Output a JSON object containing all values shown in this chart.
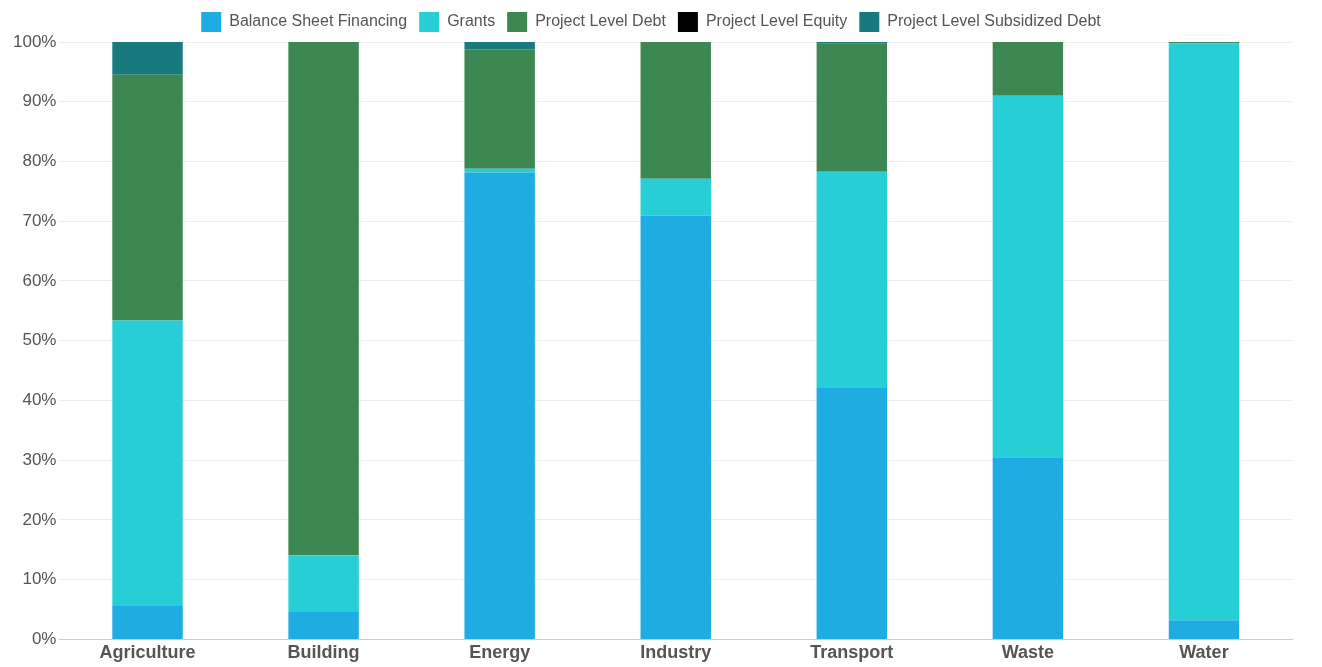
{
  "chart_data": {
    "type": "bar",
    "stacked": true,
    "categories": [
      "Agriculture",
      "Building",
      "Energy",
      "Industry",
      "Transport",
      "Waste",
      "Water"
    ],
    "series": [
      {
        "name": "Balance Sheet Financing",
        "color": "#1eace2",
        "values": [
          5.6,
          4.6,
          78.1,
          70.9,
          42.2,
          30.5,
          3.2
        ]
      },
      {
        "name": "Grants",
        "color": "#28ced6",
        "values": [
          47.8,
          9.5,
          0.7,
          6.2,
          36.1,
          60.5,
          96.6
        ]
      },
      {
        "name": "Project Level Debt",
        "color": "#3d8753",
        "values": [
          41.1,
          85.9,
          20.0,
          22.9,
          21.4,
          9.0,
          0.2
        ]
      },
      {
        "name": "Project Level Equity",
        "color": "#000000",
        "values": [
          0,
          0,
          0,
          0,
          0,
          0,
          0
        ]
      },
      {
        "name": "Project Level Subsidized Debt",
        "color": "#187a7e",
        "values": [
          5.5,
          0,
          1.2,
          0,
          0.3,
          0,
          0
        ]
      }
    ],
    "ylim": [
      0,
      100
    ],
    "yticks": [
      {
        "value": 0,
        "label": "0%"
      },
      {
        "value": 10,
        "label": "10%"
      },
      {
        "value": 20,
        "label": "20%"
      },
      {
        "value": 30,
        "label": "30%"
      },
      {
        "value": 40,
        "label": "40%"
      },
      {
        "value": 50,
        "label": "50%"
      },
      {
        "value": 60,
        "label": "60%"
      },
      {
        "value": 70,
        "label": "70%"
      },
      {
        "value": 80,
        "label": "80%"
      },
      {
        "value": 90,
        "label": "90%"
      },
      {
        "value": 100,
        "label": "100%"
      }
    ],
    "grid": "y",
    "legend": "top"
  }
}
